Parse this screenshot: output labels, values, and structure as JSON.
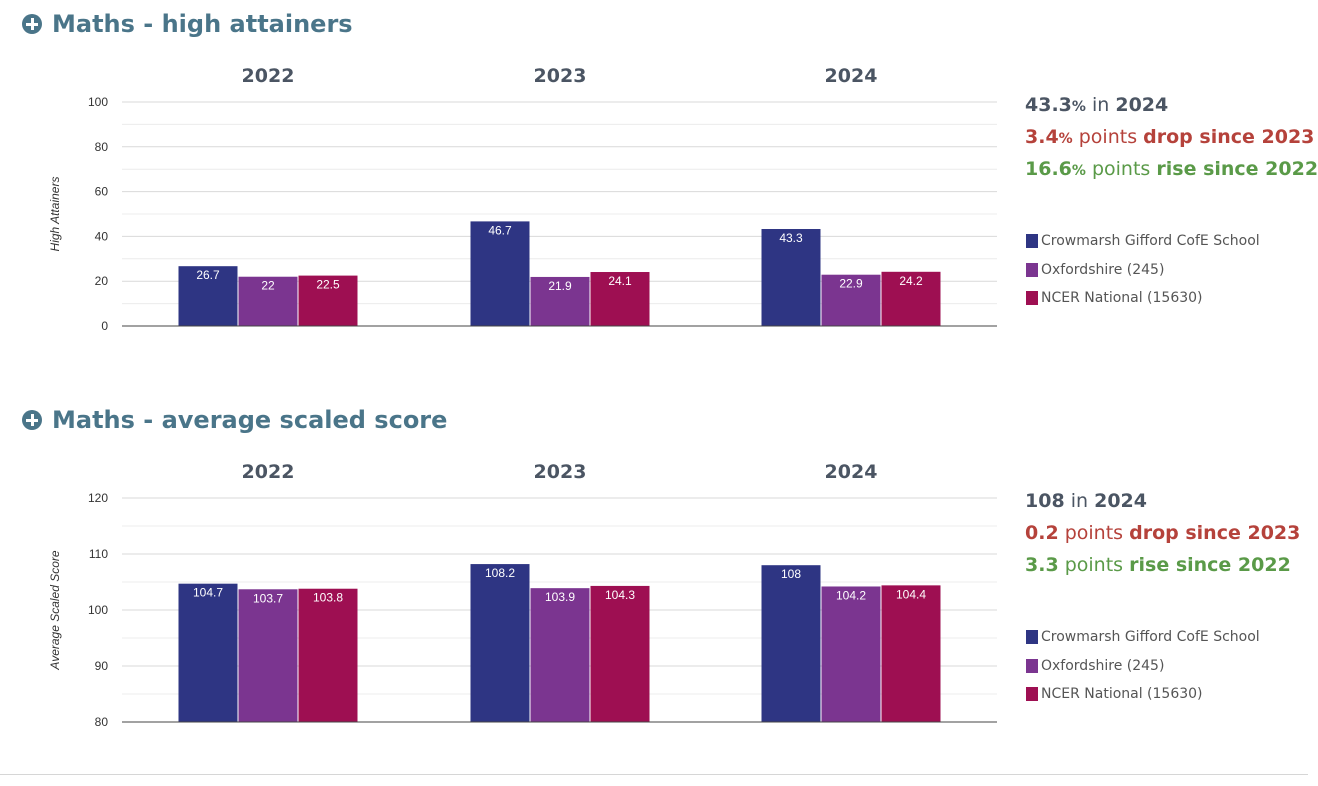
{
  "sections": [
    {
      "title": "Maths - high attainers",
      "headline": {
        "value": "43.3",
        "unit": "%",
        "text": "in",
        "year": "2024"
      },
      "change1": {
        "value": "3.4",
        "unit": "%",
        "text": "points",
        "direction": "drop since 2023"
      },
      "change2": {
        "value": "16.6",
        "unit": "%",
        "text": "points",
        "direction": "rise since 2022"
      },
      "legend": [
        {
          "label": "Crowmarsh Gifford CofE School",
          "color": "#2e3583"
        },
        {
          "label": "Oxfordshire (245)",
          "color": "#7b3590"
        },
        {
          "label": "NCER National (15630)",
          "color": "#9e0f52"
        }
      ]
    },
    {
      "title": "Maths - average scaled score",
      "headline": {
        "value": "108",
        "unit": "",
        "text": "in",
        "year": "2024"
      },
      "change1": {
        "value": "0.2",
        "unit": "",
        "text": "points",
        "direction": "drop since 2023"
      },
      "change2": {
        "value": "3.3",
        "unit": "",
        "text": "points",
        "direction": "rise since 2022"
      },
      "legend": [
        {
          "label": "Crowmarsh Gifford CofE School",
          "color": "#2e3583"
        },
        {
          "label": "Oxfordshire (245)",
          "color": "#7b3590"
        },
        {
          "label": "NCER National (15630)",
          "color": "#9e0f52"
        }
      ]
    }
  ],
  "chart_data": [
    {
      "type": "bar",
      "title": "Maths - high attainers",
      "categories": [
        "2022",
        "2023",
        "2024"
      ],
      "ylabel": "High Attainers",
      "ylim": [
        0,
        100
      ],
      "yticks": [
        0,
        20,
        40,
        60,
        80,
        100
      ],
      "grid": true,
      "legend_position": "right",
      "series": [
        {
          "name": "Crowmarsh Gifford CofE School",
          "values": [
            26.7,
            46.7,
            43.3
          ],
          "labels": [
            "26.7",
            "46.7",
            "43.3"
          ],
          "color": "#2e3583"
        },
        {
          "name": "Oxfordshire (245)",
          "values": [
            22,
            21.9,
            22.9
          ],
          "labels": [
            "22",
            "21.9",
            "22.9"
          ],
          "color": "#7b3590"
        },
        {
          "name": "NCER National (15630)",
          "values": [
            22.5,
            24.1,
            24.2
          ],
          "labels": [
            "22.5",
            "24.1",
            "24.2"
          ],
          "color": "#9e0f52"
        }
      ]
    },
    {
      "type": "bar",
      "title": "Maths - average scaled score",
      "categories": [
        "2022",
        "2023",
        "2024"
      ],
      "ylabel": "Average Scaled Score",
      "ylim": [
        80,
        120
      ],
      "yticks": [
        80,
        90,
        100,
        110,
        120
      ],
      "grid": true,
      "legend_position": "right",
      "series": [
        {
          "name": "Crowmarsh Gifford CofE School",
          "values": [
            104.7,
            108.2,
            108
          ],
          "labels": [
            "104.7",
            "108.2",
            "108"
          ],
          "color": "#2e3583"
        },
        {
          "name": "Oxfordshire (245)",
          "values": [
            103.7,
            103.9,
            104.2
          ],
          "labels": [
            "103.7",
            "103.9",
            "104.2"
          ],
          "color": "#7b3590"
        },
        {
          "name": "NCER National (15630)",
          "values": [
            103.8,
            104.3,
            104.4
          ],
          "labels": [
            "103.8",
            "104.3",
            "104.4"
          ],
          "color": "#9e0f52"
        }
      ]
    }
  ]
}
